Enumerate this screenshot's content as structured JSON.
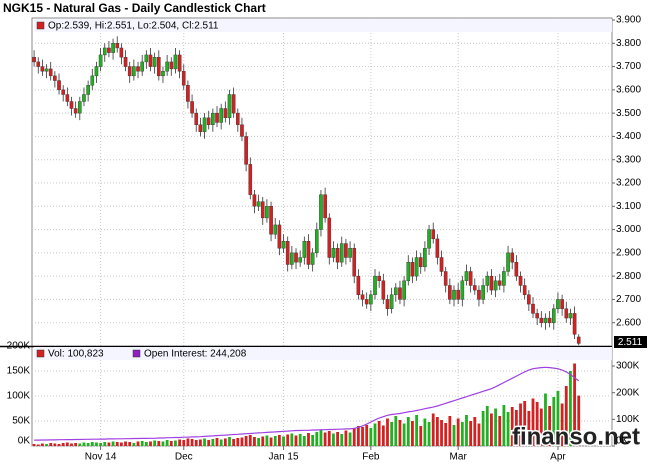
{
  "chart_data": [
    {
      "type": "candlestick",
      "title": "NGK15 - Natural Gas - Daily Candlestick Chart",
      "legend": "Op:2.539, Hi:2.551, Lo:2.504, Cl:2.511",
      "up_color": "#22b022",
      "down_color": "#d42020",
      "xlim": [
        -0.5,
        139
      ],
      "ylim": [
        2.5,
        3.9
      ],
      "yticks": [
        {
          "value": 2.6,
          "label": "2.600"
        },
        {
          "value": 2.7,
          "label": "2.700"
        },
        {
          "value": 2.8,
          "label": "2.800"
        },
        {
          "value": 2.9,
          "label": "2.900"
        },
        {
          "value": 3.0,
          "label": "3.000"
        },
        {
          "value": 3.1,
          "label": "3.100"
        },
        {
          "value": 3.2,
          "label": "3.200"
        },
        {
          "value": 3.3,
          "label": "3.300"
        },
        {
          "value": 3.4,
          "label": "3.400"
        },
        {
          "value": 3.5,
          "label": "3.500"
        },
        {
          "value": 3.6,
          "label": "3.600"
        },
        {
          "value": 3.7,
          "label": "3.700"
        },
        {
          "value": 3.8,
          "label": "3.800"
        },
        {
          "value": 3.9,
          "label": "3.900"
        }
      ],
      "grid": true,
      "open": [
        3.74,
        3.72,
        3.7,
        3.68,
        3.69,
        3.66,
        3.64,
        3.6,
        3.58,
        3.55,
        3.52,
        3.5,
        3.55,
        3.58,
        3.62,
        3.66,
        3.7,
        3.75,
        3.78,
        3.76,
        3.8,
        3.78,
        3.74,
        3.7,
        3.66,
        3.7,
        3.68,
        3.72,
        3.75,
        3.7,
        3.74,
        3.66,
        3.68,
        3.72,
        3.69,
        3.75,
        3.68,
        3.62,
        3.55,
        3.5,
        3.45,
        3.42,
        3.48,
        3.45,
        3.5,
        3.46,
        3.52,
        3.48,
        3.58,
        3.5,
        3.45,
        3.4,
        3.28,
        3.15,
        3.1,
        3.12,
        3.05,
        3.1,
        2.98,
        3.02,
        2.92,
        2.95,
        2.85,
        2.9,
        2.86,
        2.88,
        2.95,
        2.85,
        2.9,
        3.0,
        3.15,
        3.05,
        2.88,
        2.92,
        2.86,
        2.94,
        2.88,
        2.92,
        2.8,
        2.72,
        2.7,
        2.68,
        2.72,
        2.8,
        2.78,
        2.7,
        2.66,
        2.72,
        2.75,
        2.7,
        2.78,
        2.86,
        2.8,
        2.88,
        2.84,
        2.92,
        3.0,
        2.96,
        2.88,
        2.82,
        2.76,
        2.7,
        2.74,
        2.7,
        2.78,
        2.82,
        2.76,
        2.74,
        2.7,
        2.76,
        2.8,
        2.74,
        2.78,
        2.76,
        2.82,
        2.9,
        2.86,
        2.8,
        2.76,
        2.72,
        2.68,
        2.64,
        2.62,
        2.6,
        2.62,
        2.6,
        2.66,
        2.7,
        2.66,
        2.62,
        2.64,
        2.539
      ],
      "high": [
        3.77,
        3.74,
        3.73,
        3.71,
        3.72,
        3.68,
        3.67,
        3.62,
        3.61,
        3.57,
        3.55,
        3.57,
        3.61,
        3.64,
        3.69,
        3.72,
        3.78,
        3.8,
        3.81,
        3.82,
        3.83,
        3.8,
        3.77,
        3.72,
        3.73,
        3.72,
        3.75,
        3.77,
        3.78,
        3.76,
        3.77,
        3.7,
        3.75,
        3.74,
        3.78,
        3.77,
        3.71,
        3.64,
        3.58,
        3.52,
        3.48,
        3.5,
        3.51,
        3.52,
        3.53,
        3.54,
        3.55,
        3.6,
        3.61,
        3.52,
        3.48,
        3.42,
        3.31,
        3.17,
        3.15,
        3.14,
        3.13,
        3.12,
        3.05,
        3.04,
        2.98,
        2.97,
        2.93,
        2.92,
        2.91,
        2.97,
        2.98,
        2.92,
        3.03,
        3.17,
        3.18,
        3.07,
        2.95,
        2.94,
        2.97,
        2.96,
        2.95,
        2.94,
        2.83,
        2.74,
        2.73,
        2.74,
        2.83,
        2.82,
        2.81,
        2.72,
        2.75,
        2.77,
        2.78,
        2.8,
        2.89,
        2.88,
        2.91,
        2.9,
        2.95,
        3.02,
        3.03,
        2.98,
        2.91,
        2.84,
        2.79,
        2.76,
        2.77,
        2.8,
        2.85,
        2.84,
        2.79,
        2.76,
        2.79,
        2.82,
        2.83,
        2.8,
        2.81,
        2.84,
        2.93,
        2.92,
        2.89,
        2.82,
        2.79,
        2.74,
        2.71,
        2.66,
        2.65,
        2.64,
        2.65,
        2.68,
        2.73,
        2.72,
        2.69,
        2.66,
        2.67,
        2.551
      ],
      "low": [
        3.7,
        3.67,
        3.66,
        3.65,
        3.64,
        3.61,
        3.58,
        3.55,
        3.53,
        3.49,
        3.48,
        3.47,
        3.53,
        3.55,
        3.6,
        3.63,
        3.68,
        3.72,
        3.74,
        3.73,
        3.76,
        3.71,
        3.68,
        3.63,
        3.64,
        3.65,
        3.66,
        3.69,
        3.68,
        3.67,
        3.64,
        3.63,
        3.66,
        3.66,
        3.67,
        3.65,
        3.6,
        3.52,
        3.48,
        3.42,
        3.4,
        3.39,
        3.43,
        3.42,
        3.44,
        3.43,
        3.46,
        3.45,
        3.48,
        3.42,
        3.38,
        3.25,
        3.13,
        3.07,
        3.08,
        3.02,
        3.03,
        2.95,
        2.96,
        2.89,
        2.9,
        2.82,
        2.83,
        2.83,
        2.84,
        2.85,
        2.83,
        2.82,
        2.88,
        2.97,
        3.03,
        2.85,
        2.86,
        2.83,
        2.84,
        2.85,
        2.86,
        2.77,
        2.7,
        2.67,
        2.66,
        2.65,
        2.7,
        2.75,
        2.68,
        2.63,
        2.64,
        2.69,
        2.68,
        2.67,
        2.76,
        2.77,
        2.78,
        2.81,
        2.82,
        2.89,
        2.94,
        2.85,
        2.8,
        2.73,
        2.68,
        2.67,
        2.68,
        2.67,
        2.76,
        2.73,
        2.72,
        2.67,
        2.68,
        2.73,
        2.72,
        2.71,
        2.74,
        2.73,
        2.8,
        2.83,
        2.78,
        2.73,
        2.7,
        2.65,
        2.62,
        2.59,
        2.58,
        2.57,
        2.58,
        2.57,
        2.64,
        2.63,
        2.6,
        2.59,
        2.53,
        2.504
      ],
      "close": [
        3.72,
        3.7,
        3.68,
        3.69,
        3.66,
        3.64,
        3.6,
        3.58,
        3.55,
        3.52,
        3.5,
        3.55,
        3.58,
        3.62,
        3.66,
        3.7,
        3.75,
        3.78,
        3.76,
        3.8,
        3.78,
        3.74,
        3.7,
        3.66,
        3.7,
        3.68,
        3.72,
        3.75,
        3.7,
        3.74,
        3.66,
        3.68,
        3.72,
        3.69,
        3.75,
        3.68,
        3.62,
        3.55,
        3.5,
        3.45,
        3.42,
        3.48,
        3.45,
        3.5,
        3.46,
        3.52,
        3.48,
        3.58,
        3.5,
        3.45,
        3.4,
        3.28,
        3.15,
        3.1,
        3.12,
        3.05,
        3.1,
        2.98,
        3.02,
        2.92,
        2.95,
        2.85,
        2.9,
        2.86,
        2.88,
        2.95,
        2.85,
        2.9,
        3.0,
        3.15,
        3.05,
        2.88,
        2.92,
        2.86,
        2.94,
        2.88,
        2.92,
        2.8,
        2.72,
        2.7,
        2.68,
        2.72,
        2.8,
        2.78,
        2.7,
        2.66,
        2.72,
        2.75,
        2.7,
        2.78,
        2.86,
        2.8,
        2.88,
        2.84,
        2.92,
        3.0,
        2.96,
        2.88,
        2.82,
        2.76,
        2.7,
        2.74,
        2.7,
        2.78,
        2.82,
        2.76,
        2.74,
        2.7,
        2.76,
        2.8,
        2.74,
        2.78,
        2.76,
        2.82,
        2.9,
        2.86,
        2.8,
        2.76,
        2.72,
        2.68,
        2.64,
        2.62,
        2.6,
        2.62,
        2.6,
        2.66,
        2.7,
        2.66,
        2.62,
        2.64,
        2.55,
        2.511
      ]
    },
    {
      "type": "bar",
      "legend": "Vol: 100,823",
      "oi_legend": "Open Interest: 244,208",
      "watermark": "finanso.net",
      "xlim": [
        -0.5,
        139
      ],
      "xticks": [
        {
          "value": 16,
          "label": "Nov 14"
        },
        {
          "value": 36,
          "label": "Dec"
        },
        {
          "value": 60,
          "label": "Jan 15"
        },
        {
          "value": 81,
          "label": "Feb"
        },
        {
          "value": 102,
          "label": "Mar"
        },
        {
          "value": 126,
          "label": "Apr"
        }
      ],
      "ylim": [
        0,
        200000
      ],
      "yticks": [
        {
          "value": 0,
          "label": "0K"
        },
        {
          "value": 50000,
          "label": "50K"
        },
        {
          "value": 100000,
          "label": "100K"
        },
        {
          "value": 150000,
          "label": "150K"
        },
        {
          "value": 200000,
          "label": "200K"
        }
      ],
      "y2lim": [
        0,
        375000
      ],
      "y2ticks": [
        {
          "value": 0,
          "label": "0K"
        },
        {
          "value": 100000,
          "label": "100K"
        },
        {
          "value": 200000,
          "label": "200K"
        },
        {
          "value": 300000,
          "label": "300K"
        }
      ],
      "oi_color": "#a040e0",
      "oi_box_color": "#9020c0",
      "values": [
        4000,
        3000,
        5000,
        4000,
        6000,
        5000,
        4000,
        6000,
        7000,
        5000,
        6000,
        5000,
        7000,
        6000,
        8000,
        7000,
        6000,
        8000,
        7000,
        9000,
        8000,
        7000,
        9000,
        8000,
        6000,
        9000,
        10000,
        8000,
        9000,
        11000,
        10000,
        9000,
        12000,
        10000,
        11000,
        13000,
        12000,
        15000,
        14000,
        12000,
        13000,
        15000,
        12000,
        14000,
        16000,
        13000,
        15000,
        18000,
        14000,
        16000,
        17000,
        20000,
        22000,
        18000,
        16000,
        19000,
        21000,
        17000,
        20000,
        22000,
        19000,
        23000,
        25000,
        21000,
        24000,
        20000,
        26000,
        22000,
        28000,
        32000,
        27000,
        30000,
        25000,
        28000,
        24000,
        31000,
        27000,
        35000,
        40000,
        38000,
        42000,
        36000,
        45000,
        50000,
        41000,
        55000,
        48000,
        60000,
        52000,
        45000,
        58000,
        50000,
        62000,
        40000,
        55000,
        48000,
        65000,
        58000,
        52000,
        46000,
        60000,
        42000,
        55000,
        48000,
        62000,
        50000,
        58000,
        45000,
        70000,
        80000,
        65000,
        75000,
        60000,
        82000,
        68000,
        78000,
        72000,
        85000,
        90000,
        70000,
        95000,
        88000,
        75000,
        105000,
        80000,
        98000,
        110000,
        85000,
        120000,
        150000,
        165000,
        100823
      ],
      "open_interest": [
        22000,
        22000,
        22500,
        22500,
        23000,
        23000,
        23500,
        23500,
        24000,
        24000,
        24500,
        24500,
        25000,
        25000,
        25500,
        25500,
        26000,
        26000,
        26500,
        26500,
        27000,
        27000,
        27500,
        27500,
        28000,
        28000,
        28500,
        28500,
        29000,
        29000,
        30000,
        30000,
        31000,
        31000,
        32000,
        32000,
        33000,
        33000,
        34000,
        34000,
        35000,
        36000,
        37000,
        38000,
        39000,
        40000,
        41000,
        42000,
        43000,
        44000,
        45000,
        46000,
        47000,
        48000,
        49000,
        50000,
        51000,
        52000,
        53000,
        54000,
        55000,
        56000,
        57000,
        58000,
        58000,
        59000,
        59000,
        60000,
        60000,
        61000,
        61000,
        62000,
        62000,
        63000,
        63000,
        64000,
        64000,
        66000,
        70000,
        75000,
        82000,
        90000,
        98000,
        105000,
        110000,
        115000,
        118000,
        120000,
        122000,
        125000,
        128000,
        130000,
        133000,
        136000,
        140000,
        143000,
        146000,
        150000,
        155000,
        160000,
        165000,
        170000,
        175000,
        180000,
        185000,
        190000,
        195000,
        200000,
        205000,
        210000,
        215000,
        222000,
        230000,
        238000,
        246000,
        254000,
        262000,
        270000,
        278000,
        285000,
        290000,
        292000,
        294000,
        295000,
        294000,
        292000,
        290000,
        285000,
        278000,
        268000,
        256000,
        244208
      ]
    }
  ]
}
